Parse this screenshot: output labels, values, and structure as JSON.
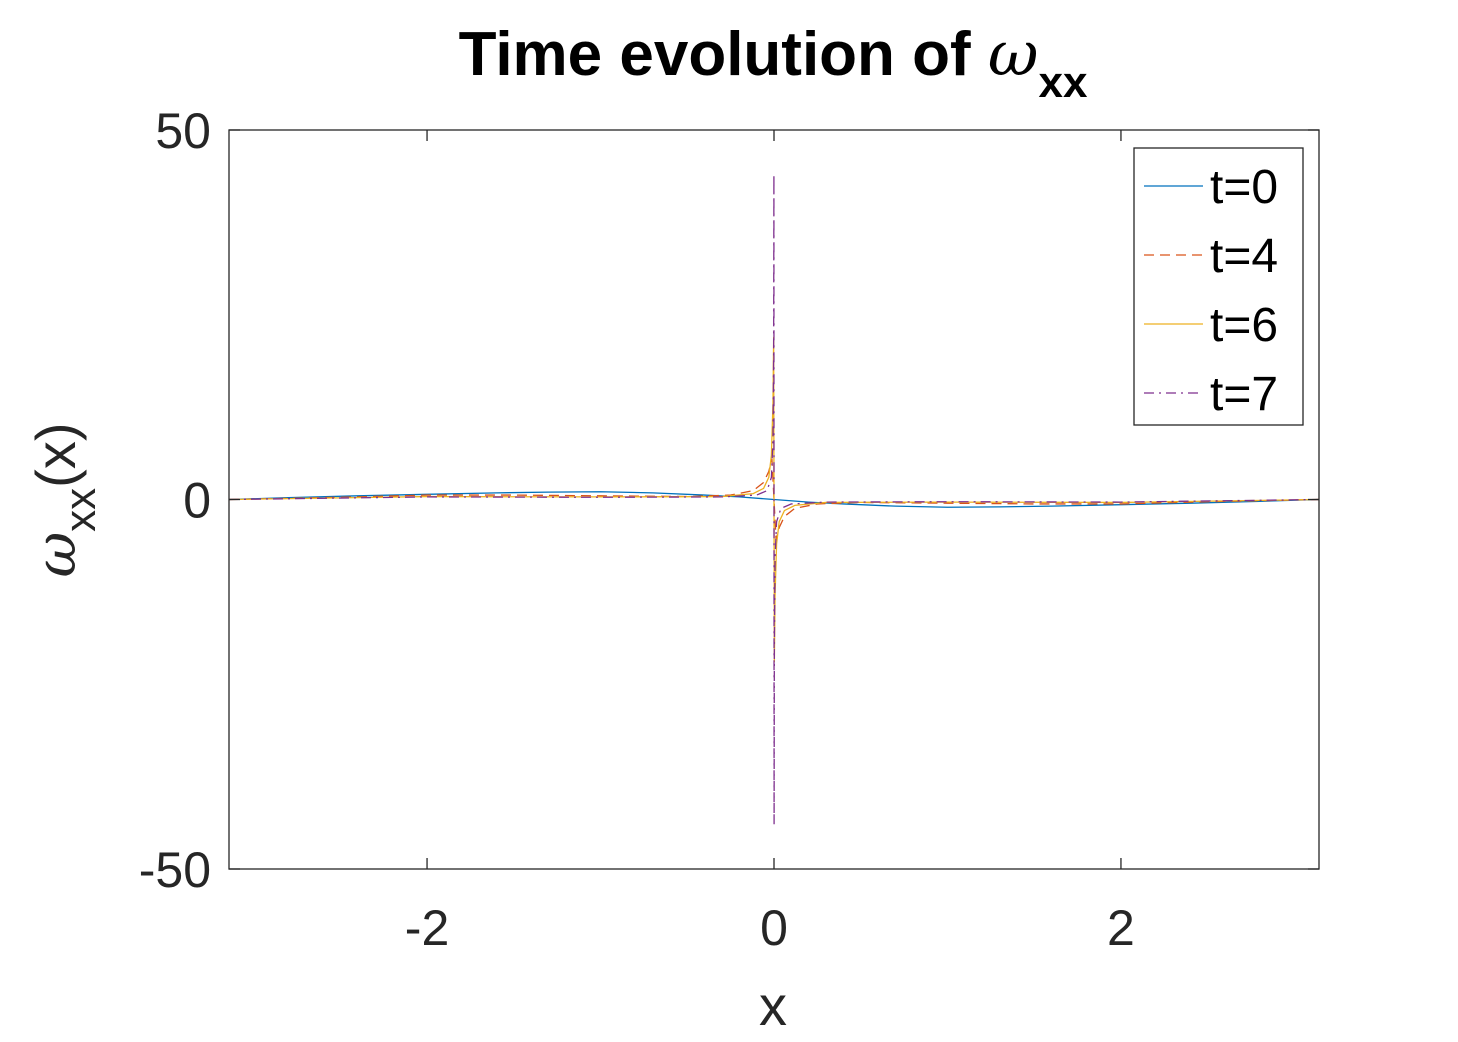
{
  "chart_data": {
    "type": "line",
    "title": {
      "prefix": "Time evolution of ",
      "symbol": "ω",
      "subscript": "xx"
    },
    "xlabel": "x",
    "ylabel": {
      "symbol": "ω",
      "subscript": "xx",
      "suffix": "(x)"
    },
    "xlim": [
      -3.1416,
      3.1416
    ],
    "ylim": [
      -50,
      50
    ],
    "xticks": [
      -2,
      0,
      2
    ],
    "xtick_labels": [
      "-2",
      "0",
      "2"
    ],
    "yticks": [
      -50,
      0,
      50
    ],
    "ytick_labels": [
      "-50",
      "0",
      "50"
    ],
    "grid": false,
    "legend_position": "top-right",
    "series": [
      {
        "name": "t=0",
        "color": "#0072BD",
        "dash": "solid",
        "points": [
          [
            -3.1416,
            0
          ],
          [
            -2.8,
            0.25
          ],
          [
            -2.4,
            0.5
          ],
          [
            -2.0,
            0.7
          ],
          [
            -1.6,
            0.9
          ],
          [
            -1.3,
            1.0
          ],
          [
            -1.0,
            1.05
          ],
          [
            -0.7,
            0.9
          ],
          [
            -0.4,
            0.6
          ],
          [
            -0.2,
            0.35
          ],
          [
            0,
            0
          ],
          [
            0.2,
            -0.35
          ],
          [
            0.4,
            -0.6
          ],
          [
            0.7,
            -0.9
          ],
          [
            1.0,
            -1.05
          ],
          [
            1.3,
            -1.0
          ],
          [
            1.6,
            -0.9
          ],
          [
            2.0,
            -0.7
          ],
          [
            2.4,
            -0.5
          ],
          [
            2.8,
            -0.25
          ],
          [
            3.1416,
            0
          ]
        ]
      },
      {
        "name": "t=4",
        "color": "#D95319",
        "dash": "dashed",
        "points": [
          [
            -3.1416,
            0
          ],
          [
            -2.5,
            0.3
          ],
          [
            -2.0,
            0.6
          ],
          [
            -1.5,
            0.6
          ],
          [
            -1.0,
            0.5
          ],
          [
            -0.5,
            0.4
          ],
          [
            -0.25,
            0.6
          ],
          [
            -0.12,
            1.2
          ],
          [
            -0.06,
            2.3
          ],
          [
            -0.03,
            3.8
          ],
          [
            -0.012,
            5.5
          ],
          [
            0,
            0
          ],
          [
            0.012,
            -5.5
          ],
          [
            0.03,
            -3.8
          ],
          [
            0.06,
            -2.3
          ],
          [
            0.12,
            -1.2
          ],
          [
            0.25,
            -0.6
          ],
          [
            0.5,
            -0.4
          ],
          [
            1.0,
            -0.5
          ],
          [
            1.5,
            -0.6
          ],
          [
            2.0,
            -0.6
          ],
          [
            2.5,
            -0.3
          ],
          [
            3.1416,
            0
          ]
        ]
      },
      {
        "name": "t=6",
        "color": "#EDB120",
        "dash": "solid",
        "points": [
          [
            -3.1416,
            0
          ],
          [
            -2.0,
            0.4
          ],
          [
            -1.0,
            0.35
          ],
          [
            -0.3,
            0.4
          ],
          [
            -0.12,
            0.8
          ],
          [
            -0.06,
            1.5
          ],
          [
            -0.03,
            3.0
          ],
          [
            -0.015,
            6.0
          ],
          [
            -0.006,
            13.0
          ],
          [
            -0.002,
            22.0
          ],
          [
            0,
            0
          ],
          [
            0.002,
            -22.0
          ],
          [
            0.006,
            -13.0
          ],
          [
            0.015,
            -6.0
          ],
          [
            0.03,
            -3.0
          ],
          [
            0.06,
            -1.5
          ],
          [
            0.12,
            -0.8
          ],
          [
            0.3,
            -0.4
          ],
          [
            1.0,
            -0.35
          ],
          [
            2.0,
            -0.4
          ],
          [
            3.1416,
            0
          ]
        ]
      },
      {
        "name": "t=7",
        "color": "#7E2F8E",
        "dash": "dashdot",
        "points": [
          [
            -3.1416,
            0
          ],
          [
            -2.0,
            0.35
          ],
          [
            -1.0,
            0.3
          ],
          [
            -0.3,
            0.35
          ],
          [
            -0.1,
            0.6
          ],
          [
            -0.04,
            1.2
          ],
          [
            -0.015,
            3.0
          ],
          [
            -0.006,
            8.0
          ],
          [
            -0.002,
            20.0
          ],
          [
            -0.0005,
            44.0
          ],
          [
            0,
            0
          ],
          [
            0.0005,
            -44.0
          ],
          [
            0.002,
            -20.0
          ],
          [
            0.006,
            -8.0
          ],
          [
            0.015,
            -3.0
          ],
          [
            0.04,
            -1.2
          ],
          [
            0.1,
            -0.6
          ],
          [
            0.3,
            -0.35
          ],
          [
            1.0,
            -0.3
          ],
          [
            2.0,
            -0.35
          ],
          [
            3.1416,
            0
          ]
        ]
      }
    ]
  }
}
